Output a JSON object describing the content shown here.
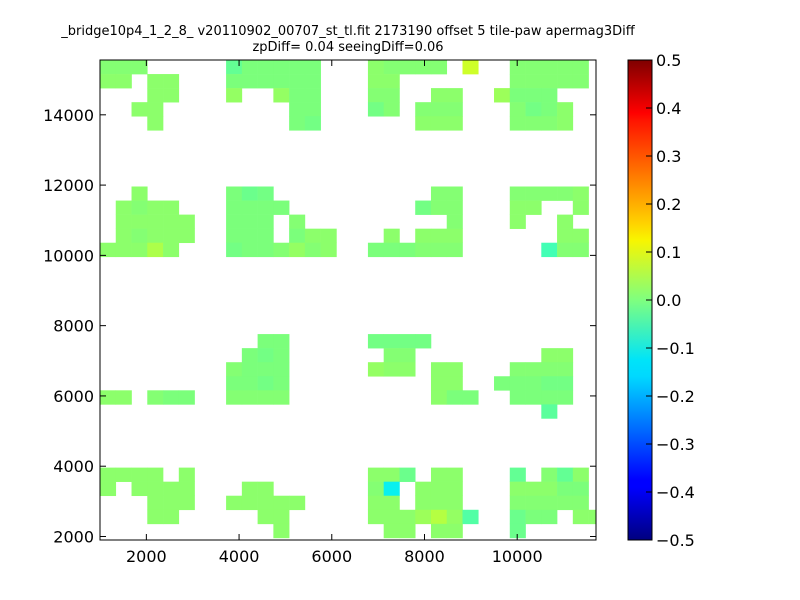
{
  "chart_data": {
    "type": "heatmap",
    "title": "_bridge10p4_1_2_8_ v20110902_00707_st_tl.fit 2173190 offset 5 tile-paw apermag3Diff",
    "subtitle": "zpDiff= 0.04 seeingDiff=0.06",
    "xlabel": "",
    "ylabel": "",
    "xlim": [
      1000,
      11700
    ],
    "ylim": [
      1900,
      15560
    ],
    "x_ticks": [
      "2000",
      "4000",
      "6000",
      "8000",
      "10000"
    ],
    "y_ticks": [
      "2000",
      "4000",
      "6000",
      "8000",
      "10000",
      "12000",
      "14000"
    ],
    "colorbar": {
      "colormap": "jet",
      "range": [
        -0.5,
        0.5
      ],
      "ticks": [
        "0.5",
        "0.4",
        "0.3",
        "0.2",
        "0.1",
        "0.0",
        "−0.1",
        "−0.2",
        "−0.3",
        "−0.4",
        "−0.5"
      ]
    },
    "cell_size": [
      340,
      400
    ],
    "cells": [
      [
        1170,
        15360,
        0.01
      ],
      [
        1510,
        15360,
        0.01
      ],
      [
        1850,
        15360,
        0.01
      ],
      [
        3890,
        15360,
        -0.03
      ],
      [
        4230,
        15360,
        0.0
      ],
      [
        4570,
        15360,
        0.0
      ],
      [
        4910,
        15360,
        0.0
      ],
      [
        5250,
        15360,
        0.0
      ],
      [
        5590,
        15360,
        0.0
      ],
      [
        6950,
        15360,
        0.02
      ],
      [
        7290,
        15360,
        0.01
      ],
      [
        7630,
        15360,
        0.01
      ],
      [
        7970,
        15360,
        0.01
      ],
      [
        8310,
        15360,
        0.01
      ],
      [
        8990,
        15360,
        0.1
      ],
      [
        10010,
        15360,
        0.01
      ],
      [
        10350,
        15360,
        0.01
      ],
      [
        10690,
        15360,
        0.01
      ],
      [
        11030,
        15360,
        0.01
      ],
      [
        11370,
        15360,
        0.01
      ],
      [
        1170,
        14960,
        0.02
      ],
      [
        1510,
        14960,
        0.02
      ],
      [
        2190,
        14960,
        0.02
      ],
      [
        2530,
        14960,
        0.02
      ],
      [
        3890,
        14960,
        0.0
      ],
      [
        4230,
        14960,
        0.0
      ],
      [
        4570,
        14960,
        0.0
      ],
      [
        4910,
        14960,
        0.0
      ],
      [
        5250,
        14960,
        0.0
      ],
      [
        5590,
        14960,
        0.0
      ],
      [
        6950,
        14960,
        0.02
      ],
      [
        7290,
        14960,
        0.02
      ],
      [
        10010,
        14960,
        0.01
      ],
      [
        10350,
        14960,
        0.01
      ],
      [
        10690,
        14960,
        0.01
      ],
      [
        11030,
        14960,
        0.01
      ],
      [
        11370,
        14960,
        0.01
      ],
      [
        2190,
        14560,
        0.02
      ],
      [
        2530,
        14560,
        0.02
      ],
      [
        3890,
        14560,
        0.03
      ],
      [
        4910,
        14560,
        0.03
      ],
      [
        5250,
        14560,
        0.0
      ],
      [
        5590,
        14560,
        0.0
      ],
      [
        6950,
        14560,
        0.01
      ],
      [
        7290,
        14560,
        0.01
      ],
      [
        8310,
        14560,
        0.02
      ],
      [
        8650,
        14560,
        0.02
      ],
      [
        9670,
        14560,
        0.04
      ],
      [
        10010,
        14560,
        0.0
      ],
      [
        10350,
        14560,
        0.0
      ],
      [
        10690,
        14560,
        0.0
      ],
      [
        1850,
        14160,
        0.02
      ],
      [
        2190,
        14160,
        0.02
      ],
      [
        5250,
        14160,
        0.0
      ],
      [
        5590,
        14160,
        0.0
      ],
      [
        6950,
        14160,
        -0.01
      ],
      [
        7290,
        14160,
        0.01
      ],
      [
        7970,
        14160,
        0.01
      ],
      [
        8310,
        14160,
        0.01
      ],
      [
        8650,
        14160,
        0.01
      ],
      [
        10010,
        14160,
        0.01
      ],
      [
        10350,
        14160,
        -0.01
      ],
      [
        10690,
        14160,
        0.0
      ],
      [
        11030,
        14160,
        0.02
      ],
      [
        2190,
        13760,
        0.02
      ],
      [
        5250,
        13760,
        0.0
      ],
      [
        5590,
        13760,
        -0.01
      ],
      [
        7970,
        13760,
        0.02
      ],
      [
        8310,
        13760,
        0.02
      ],
      [
        8650,
        13760,
        0.02
      ],
      [
        10010,
        13760,
        0.01
      ],
      [
        10350,
        13760,
        0.01
      ],
      [
        10690,
        13760,
        0.01
      ],
      [
        11030,
        13760,
        0.02
      ],
      [
        1850,
        11760,
        0.02
      ],
      [
        3890,
        11760,
        0.0
      ],
      [
        4230,
        11760,
        -0.02
      ],
      [
        4570,
        11760,
        -0.01
      ],
      [
        8310,
        11760,
        0.01
      ],
      [
        8650,
        11760,
        0.01
      ],
      [
        10010,
        11760,
        0.01
      ],
      [
        10350,
        11760,
        0.01
      ],
      [
        10690,
        11760,
        0.01
      ],
      [
        11030,
        11760,
        0.01
      ],
      [
        11370,
        11760,
        0.02
      ],
      [
        1510,
        11360,
        0.02
      ],
      [
        1850,
        11360,
        0.01
      ],
      [
        2190,
        11360,
        0.02
      ],
      [
        2530,
        11360,
        0.02
      ],
      [
        3890,
        11360,
        0.0
      ],
      [
        4230,
        11360,
        0.0
      ],
      [
        4570,
        11360,
        0.0
      ],
      [
        4910,
        11360,
        0.0
      ],
      [
        7970,
        11360,
        -0.01
      ],
      [
        8310,
        11360,
        0.01
      ],
      [
        8650,
        11360,
        0.01
      ],
      [
        10010,
        11360,
        0.02
      ],
      [
        10350,
        11360,
        0.02
      ],
      [
        11370,
        11360,
        0.02
      ],
      [
        1510,
        10960,
        0.02
      ],
      [
        1850,
        10960,
        0.02
      ],
      [
        2190,
        10960,
        0.02
      ],
      [
        2530,
        10960,
        0.02
      ],
      [
        2870,
        10960,
        0.02
      ],
      [
        3890,
        10960,
        0.0
      ],
      [
        4230,
        10960,
        0.0
      ],
      [
        4570,
        10960,
        0.0
      ],
      [
        5250,
        10960,
        0.01
      ],
      [
        8650,
        10960,
        0.01
      ],
      [
        10010,
        10960,
        0.02
      ],
      [
        11030,
        10960,
        0.02
      ],
      [
        1510,
        10560,
        0.02
      ],
      [
        1850,
        10560,
        0.01
      ],
      [
        2190,
        10560,
        0.02
      ],
      [
        2530,
        10560,
        0.02
      ],
      [
        2870,
        10560,
        0.02
      ],
      [
        3890,
        10560,
        0.0
      ],
      [
        4230,
        10560,
        0.0
      ],
      [
        4570,
        10560,
        0.0
      ],
      [
        5250,
        10560,
        0.0
      ],
      [
        5590,
        10560,
        0.02
      ],
      [
        5930,
        10560,
        0.02
      ],
      [
        7290,
        10560,
        0.02
      ],
      [
        7970,
        10560,
        0.02
      ],
      [
        8310,
        10560,
        0.02
      ],
      [
        8650,
        10560,
        0.02
      ],
      [
        11030,
        10560,
        0.02
      ],
      [
        11370,
        10560,
        0.02
      ],
      [
        1170,
        10160,
        0.02
      ],
      [
        1510,
        10160,
        0.02
      ],
      [
        1850,
        10160,
        0.02
      ],
      [
        2190,
        10160,
        0.06
      ],
      [
        2530,
        10160,
        0.02
      ],
      [
        3890,
        10160,
        -0.01
      ],
      [
        4230,
        10160,
        0.0
      ],
      [
        4570,
        10160,
        0.0
      ],
      [
        4910,
        10160,
        0.01
      ],
      [
        5250,
        10160,
        0.03
      ],
      [
        5590,
        10160,
        0.01
      ],
      [
        5930,
        10160,
        0.02
      ],
      [
        6950,
        10160,
        0.0
      ],
      [
        7290,
        10160,
        0.0
      ],
      [
        7630,
        10160,
        0.0
      ],
      [
        7970,
        10160,
        0.01
      ],
      [
        8310,
        10160,
        0.01
      ],
      [
        8650,
        10160,
        0.01
      ],
      [
        10690,
        10160,
        -0.07
      ],
      [
        11030,
        10160,
        0.01
      ],
      [
        11370,
        10160,
        0.01
      ],
      [
        4570,
        7560,
        0.0
      ],
      [
        4910,
        7560,
        0.0
      ],
      [
        6950,
        7560,
        -0.01
      ],
      [
        7290,
        7560,
        -0.01
      ],
      [
        7630,
        7560,
        -0.01
      ],
      [
        7970,
        7560,
        -0.01
      ],
      [
        4230,
        7160,
        0.0
      ],
      [
        4570,
        7160,
        -0.01
      ],
      [
        4910,
        7160,
        0.0
      ],
      [
        7290,
        7160,
        0.01
      ],
      [
        7630,
        7160,
        0.01
      ],
      [
        10690,
        7160,
        0.02
      ],
      [
        11030,
        7160,
        0.02
      ],
      [
        3890,
        6760,
        0.01
      ],
      [
        4230,
        6760,
        0.0
      ],
      [
        4570,
        6760,
        0.0
      ],
      [
        4910,
        6760,
        0.0
      ],
      [
        6950,
        6760,
        0.03
      ],
      [
        7290,
        6760,
        0.02
      ],
      [
        7630,
        6760,
        0.02
      ],
      [
        8310,
        6760,
        0.02
      ],
      [
        8650,
        6760,
        0.02
      ],
      [
        10010,
        6760,
        0.01
      ],
      [
        10350,
        6760,
        0.01
      ],
      [
        10690,
        6760,
        0.01
      ],
      [
        11030,
        6760,
        0.01
      ],
      [
        3890,
        6360,
        0.0
      ],
      [
        4230,
        6360,
        0.0
      ],
      [
        4570,
        6360,
        -0.01
      ],
      [
        4910,
        6360,
        0.0
      ],
      [
        8310,
        6360,
        0.02
      ],
      [
        8650,
        6360,
        0.02
      ],
      [
        9670,
        6360,
        0.0
      ],
      [
        10010,
        6360,
        0.0
      ],
      [
        10350,
        6360,
        0.0
      ],
      [
        10690,
        6360,
        -0.01
      ],
      [
        11030,
        6360,
        -0.01
      ],
      [
        1170,
        5960,
        0.02
      ],
      [
        1510,
        5960,
        0.02
      ],
      [
        2190,
        5960,
        0.01
      ],
      [
        2530,
        5960,
        0.0
      ],
      [
        2870,
        5960,
        0.0
      ],
      [
        3890,
        5960,
        0.01
      ],
      [
        4230,
        5960,
        0.01
      ],
      [
        4570,
        5960,
        0.01
      ],
      [
        4910,
        5960,
        0.01
      ],
      [
        8310,
        5960,
        0.02
      ],
      [
        8650,
        5960,
        0.0
      ],
      [
        8990,
        5960,
        0.0
      ],
      [
        10010,
        5960,
        0.0
      ],
      [
        10350,
        5960,
        0.0
      ],
      [
        10690,
        5960,
        0.0
      ],
      [
        11030,
        5960,
        0.0
      ],
      [
        10690,
        5560,
        -0.04
      ],
      [
        1170,
        3760,
        0.02
      ],
      [
        1510,
        3760,
        0.02
      ],
      [
        1850,
        3760,
        0.02
      ],
      [
        2190,
        3760,
        0.02
      ],
      [
        2870,
        3760,
        0.02
      ],
      [
        6950,
        3760,
        0.02
      ],
      [
        7290,
        3760,
        0.02
      ],
      [
        7630,
        3760,
        -0.02
      ],
      [
        8310,
        3760,
        0.02
      ],
      [
        8650,
        3760,
        0.02
      ],
      [
        10010,
        3760,
        -0.03
      ],
      [
        10690,
        3760,
        0.01
      ],
      [
        11030,
        3760,
        -0.03
      ],
      [
        11370,
        3760,
        0.02
      ],
      [
        1170,
        3360,
        0.02
      ],
      [
        1850,
        3360,
        0.02
      ],
      [
        2190,
        3360,
        0.02
      ],
      [
        2530,
        3360,
        0.02
      ],
      [
        2870,
        3360,
        0.02
      ],
      [
        4230,
        3360,
        0.02
      ],
      [
        4570,
        3360,
        0.02
      ],
      [
        6950,
        3360,
        0.01
      ],
      [
        7290,
        3360,
        -0.14
      ],
      [
        7970,
        3360,
        0.02
      ],
      [
        8310,
        3360,
        0.02
      ],
      [
        8650,
        3360,
        0.02
      ],
      [
        10010,
        3360,
        0.02
      ],
      [
        10350,
        3360,
        0.02
      ],
      [
        10690,
        3360,
        0.02
      ],
      [
        11030,
        3360,
        0.0
      ],
      [
        11370,
        3360,
        0.0
      ],
      [
        2190,
        2960,
        0.02
      ],
      [
        2530,
        2960,
        0.02
      ],
      [
        2870,
        2960,
        0.02
      ],
      [
        3890,
        2960,
        0.02
      ],
      [
        4230,
        2960,
        0.02
      ],
      [
        4570,
        2960,
        0.02
      ],
      [
        4910,
        2960,
        0.02
      ],
      [
        5250,
        2960,
        0.02
      ],
      [
        6950,
        2960,
        0.02
      ],
      [
        7290,
        2960,
        0.02
      ],
      [
        7970,
        2960,
        0.02
      ],
      [
        8310,
        2960,
        0.02
      ],
      [
        8650,
        2960,
        0.02
      ],
      [
        10010,
        2960,
        0.01
      ],
      [
        10350,
        2960,
        0.01
      ],
      [
        10690,
        2960,
        0.01
      ],
      [
        11030,
        2960,
        0.01
      ],
      [
        11370,
        2960,
        0.01
      ],
      [
        2190,
        2560,
        0.02
      ],
      [
        2530,
        2560,
        0.02
      ],
      [
        4570,
        2560,
        0.02
      ],
      [
        4910,
        2560,
        0.02
      ],
      [
        6950,
        2560,
        0.02
      ],
      [
        7290,
        2560,
        0.02
      ],
      [
        7630,
        2560,
        0.02
      ],
      [
        7970,
        2560,
        0.04
      ],
      [
        8310,
        2560,
        0.07
      ],
      [
        8650,
        2560,
        0.03
      ],
      [
        8990,
        2560,
        -0.05
      ],
      [
        10010,
        2560,
        -0.02
      ],
      [
        10350,
        2560,
        0.0
      ],
      [
        10690,
        2560,
        0.0
      ],
      [
        11370,
        2560,
        0.02
      ],
      [
        11710,
        2560,
        0.02
      ],
      [
        4910,
        2160,
        0.02
      ],
      [
        7290,
        2160,
        0.02
      ],
      [
        7630,
        2160,
        0.02
      ],
      [
        8310,
        2160,
        0.02
      ],
      [
        8650,
        2160,
        0.02
      ],
      [
        10010,
        2160,
        -0.02
      ]
    ]
  }
}
